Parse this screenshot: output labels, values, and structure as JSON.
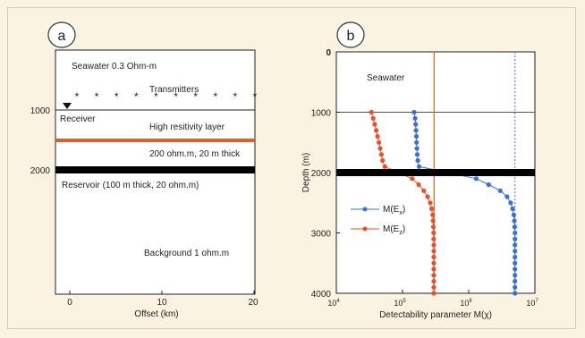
{
  "colors": {
    "background": "#fbf3e2",
    "axis": "#222222",
    "orange": "#e8502a",
    "blue": "#3a6fd8",
    "layer_orange": "#d9622b",
    "reservoir": "#000000"
  },
  "panel_a": {
    "label": "a",
    "annotations": {
      "seawater": "Seawater 0.3 Ohm-m",
      "transmitters": "Transmitters",
      "receiver": "Receiver",
      "high_res_layer": "High resitivity layer",
      "high_res_params": "200 ohm.m, 20 m thick",
      "reservoir": "Reservoir (100 m thick, 20 ohm.m)",
      "background": "Background 1 ohm.m"
    },
    "y_ticks": [
      "1000",
      "2000"
    ],
    "x_ticks": [
      "0",
      "10",
      "20"
    ],
    "xlabel": "Offset (km)",
    "transmitter_marker": "*",
    "transmitter_count": 10
  },
  "panel_b": {
    "label": "b",
    "annotation_seawater": "Seawater",
    "ylabel": "Depth (m)",
    "xlabel": "Detectability parameter M(χ)",
    "y_ticks": [
      "0",
      "1000",
      "2000",
      "3000",
      "4000"
    ],
    "x_ticks": [
      {
        "base": "10",
        "exp": "4"
      },
      {
        "base": "10",
        "exp": "5"
      },
      {
        "base": "10",
        "exp": "6"
      },
      {
        "base": "10",
        "exp": "7"
      }
    ],
    "legend": [
      {
        "base": "M(E",
        "sub": "x",
        "tail": ")",
        "color": "#3a6fd8"
      },
      {
        "base": "M(E",
        "sub": "z",
        "tail": ")",
        "color": "#e8502a"
      }
    ]
  },
  "chart_data": {
    "type": "line",
    "xlabel": "Detectability parameter M(χ)",
    "ylabel": "Depth (m)",
    "xscale": "log",
    "xlim": [
      10000,
      10000000
    ],
    "ylim": [
      4000,
      0
    ],
    "reservoir_depth": 2000,
    "reference_lines": {
      "horizontal_depth": 1000,
      "vertical_orange": 300000,
      "vertical_blue_dotted": 5000000
    },
    "series": [
      {
        "name": "M(Ex)",
        "color": "#3a6fd8",
        "points": [
          [
            150000,
            1000
          ],
          [
            155000,
            1100
          ],
          [
            158000,
            1200
          ],
          [
            160000,
            1300
          ],
          [
            162000,
            1400
          ],
          [
            163000,
            1500
          ],
          [
            165000,
            1600
          ],
          [
            167000,
            1700
          ],
          [
            170000,
            1800
          ],
          [
            178000,
            1900
          ],
          [
            1300000,
            2100
          ],
          [
            2000000,
            2200
          ],
          [
            3000000,
            2300
          ],
          [
            3800000,
            2400
          ],
          [
            4300000,
            2500
          ],
          [
            4600000,
            2600
          ],
          [
            4800000,
            2700
          ],
          [
            4900000,
            2800
          ],
          [
            4950000,
            2900
          ],
          [
            5000000,
            3000
          ],
          [
            5000000,
            3100
          ],
          [
            5000000,
            3200
          ],
          [
            5000000,
            3300
          ],
          [
            5000000,
            3400
          ],
          [
            5000000,
            3500
          ],
          [
            5000000,
            3600
          ],
          [
            5000000,
            3700
          ],
          [
            5000000,
            3800
          ],
          [
            5000000,
            3900
          ],
          [
            5000000,
            4000
          ]
        ]
      },
      {
        "name": "M(Ez)",
        "color": "#e8502a",
        "points": [
          [
            34000,
            1000
          ],
          [
            36000,
            1100
          ],
          [
            38000,
            1200
          ],
          [
            40000,
            1300
          ],
          [
            42000,
            1400
          ],
          [
            44000,
            1500
          ],
          [
            46000,
            1600
          ],
          [
            48000,
            1700
          ],
          [
            50000,
            1800
          ],
          [
            54000,
            1900
          ],
          [
            140000,
            2100
          ],
          [
            175000,
            2200
          ],
          [
            210000,
            2300
          ],
          [
            240000,
            2400
          ],
          [
            262000,
            2500
          ],
          [
            276000,
            2600
          ],
          [
            285000,
            2700
          ],
          [
            290000,
            2800
          ],
          [
            293000,
            2900
          ],
          [
            295000,
            3000
          ],
          [
            296000,
            3100
          ],
          [
            297000,
            3200
          ],
          [
            297000,
            3300
          ],
          [
            297000,
            3400
          ],
          [
            297000,
            3500
          ],
          [
            297000,
            3600
          ],
          [
            297000,
            3700
          ],
          [
            297000,
            3800
          ],
          [
            297000,
            3900
          ],
          [
            297000,
            4000
          ]
        ]
      }
    ]
  }
}
